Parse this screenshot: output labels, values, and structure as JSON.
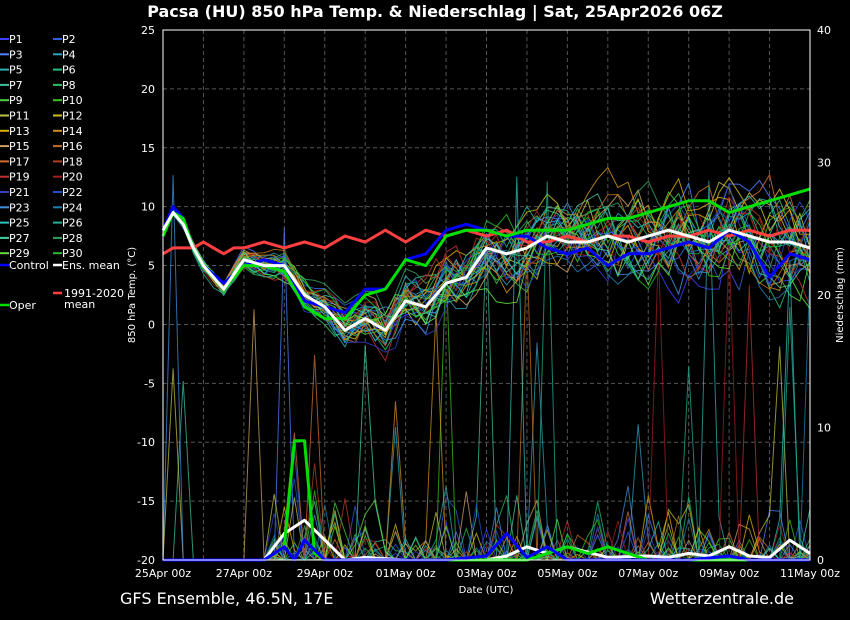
{
  "title": "Pacsa  (HU)  850 hPa Temp. & Niederschlag | Sat, 25Apr2026 06Z",
  "footer_left": "GFS Ensemble, 46.5N, 17E",
  "footer_right": "Wetterzentrale.de",
  "chart_data": {
    "type": "line",
    "xlabel": "Date (UTC)",
    "ylabel": "850 hPa Temp. (°C)",
    "y2label": "Niederschlag (mm)",
    "xlim": [
      0,
      16
    ],
    "ylim": [
      -20,
      25
    ],
    "y2lim": [
      0,
      40
    ],
    "x_tick_labels": [
      "25Apr 00z",
      "27Apr 00z",
      "29Apr 00z",
      "01May 00z",
      "03May 00z",
      "05May 00z",
      "07May 00z",
      "09May 00z",
      "11May 00z"
    ],
    "y_ticks": [
      25,
      20,
      15,
      10,
      5,
      0,
      -5,
      -10,
      -15,
      -20
    ],
    "y2_ticks": [
      40,
      30,
      20,
      10,
      0
    ],
    "grid": true,
    "legend_position": "left",
    "legend": [
      {
        "label": "P1",
        "color": "#4040ff"
      },
      {
        "label": "P2",
        "color": "#3060e0"
      },
      {
        "label": "P3",
        "color": "#5080ff"
      },
      {
        "label": "P4",
        "color": "#30a0c0"
      },
      {
        "label": "P5",
        "color": "#30b0b0"
      },
      {
        "label": "P6",
        "color": "#20c080"
      },
      {
        "label": "P7",
        "color": "#40c0a0"
      },
      {
        "label": "P8",
        "color": "#30c060"
      },
      {
        "label": "P9",
        "color": "#50d040"
      },
      {
        "label": "P10",
        "color": "#40c020"
      },
      {
        "label": "P11",
        "color": "#c0c040"
      },
      {
        "label": "P12",
        "color": "#d0c020"
      },
      {
        "label": "P13",
        "color": "#e0b000"
      },
      {
        "label": "P14",
        "color": "#d09020"
      },
      {
        "label": "P15",
        "color": "#d0a060"
      },
      {
        "label": "P16",
        "color": "#c07020"
      },
      {
        "label": "P17",
        "color": "#d07030"
      },
      {
        "label": "P18",
        "color": "#b04020"
      },
      {
        "label": "P19",
        "color": "#c03030"
      },
      {
        "label": "P20",
        "color": "#a02020"
      },
      {
        "label": "P21",
        "color": "#3040c0"
      },
      {
        "label": "P22",
        "color": "#2050d0"
      },
      {
        "label": "P23",
        "color": "#4090e0"
      },
      {
        "label": "P24",
        "color": "#2080b0"
      },
      {
        "label": "P25",
        "color": "#30c0c0"
      },
      {
        "label": "P26",
        "color": "#20b090"
      },
      {
        "label": "P27",
        "color": "#40d0a0"
      },
      {
        "label": "P28",
        "color": "#30a060"
      },
      {
        "label": "P29",
        "color": "#60e040"
      },
      {
        "label": "P30",
        "color": "#20c030"
      },
      {
        "label": "Control",
        "color": "#0000ff"
      },
      {
        "label": "Ens. mean",
        "color": "#ffffff"
      },
      {
        "label": "Oper",
        "color": "#00e000"
      },
      {
        "label": "1991-2020 mean",
        "color": "#ff4040"
      }
    ],
    "series": [
      {
        "name": "Ens. mean",
        "color": "#ffffff",
        "role": "temp",
        "x": [
          0,
          0.25,
          0.5,
          0.75,
          1,
          1.5,
          2,
          2.5,
          3,
          3.5,
          4,
          4.5,
          5,
          5.5,
          6,
          6.5,
          7,
          7.5,
          8,
          8.5,
          9,
          9.5,
          10,
          10.5,
          11,
          11.5,
          12,
          12.5,
          13,
          13.5,
          14,
          14.5,
          15,
          15.5,
          16
        ],
        "values": [
          8,
          9.5,
          8.5,
          6.5,
          5,
          3,
          5.5,
          5,
          5,
          2.5,
          1.5,
          -0.5,
          0.5,
          -0.5,
          2,
          1.5,
          3.5,
          4,
          6.5,
          6,
          6.5,
          7.5,
          7,
          7,
          7.5,
          7,
          7.5,
          8,
          7.5,
          7,
          8,
          7.5,
          7,
          7,
          6.5
        ]
      },
      {
        "name": "Control",
        "color": "#0000ff",
        "role": "temp",
        "x": [
          0,
          0.25,
          0.5,
          0.75,
          1,
          1.5,
          2,
          2.5,
          3,
          3.5,
          4,
          4.5,
          5,
          5.5,
          6,
          6.5,
          7,
          7.5,
          8,
          8.5,
          9,
          9.5,
          10,
          10.5,
          11,
          11.5,
          12,
          12.5,
          13,
          13.5,
          14,
          14.5,
          15,
          15.5,
          16
        ],
        "values": [
          8,
          10,
          9,
          6.5,
          5,
          3.5,
          5,
          5.5,
          5,
          2,
          1.5,
          1,
          3,
          3,
          5.5,
          6,
          8,
          8.5,
          8,
          7.5,
          7.5,
          6.5,
          6,
          6.5,
          5,
          6,
          6,
          6.5,
          7,
          6.5,
          8,
          7,
          4,
          6,
          5.5
        ]
      },
      {
        "name": "Oper",
        "color": "#00e000",
        "role": "temp",
        "x": [
          0,
          0.25,
          0.5,
          0.75,
          1,
          1.5,
          2,
          2.5,
          3,
          3.5,
          4,
          4.5,
          5,
          5.5,
          6,
          6.5,
          7,
          7.5,
          8,
          8.5,
          9,
          9.5,
          10,
          10.5,
          11,
          11.5,
          12,
          12.5,
          13,
          13.5,
          14,
          14.5,
          15,
          15.5,
          16
        ],
        "values": [
          7.5,
          9.5,
          9,
          6.5,
          5,
          3,
          5,
          5,
          4.5,
          1.5,
          0.5,
          0.5,
          2.5,
          3,
          5.5,
          5,
          7.5,
          8,
          8,
          7.5,
          8,
          8,
          8,
          8.5,
          9,
          9,
          9.5,
          10,
          10.5,
          10.5,
          9.5,
          10,
          10.5,
          11,
          11.5
        ]
      },
      {
        "name": "1991-2020 mean",
        "color": "#ff4040",
        "role": "temp",
        "x": [
          0,
          0.25,
          0.5,
          0.75,
          1,
          1.25,
          1.5,
          1.75,
          2,
          2.5,
          3,
          3.5,
          4,
          4.5,
          5,
          5.5,
          6,
          6.5,
          7,
          7.5,
          8,
          8.5,
          9,
          9.5,
          10,
          10.5,
          11,
          11.5,
          12,
          12.5,
          13,
          13.5,
          14,
          14.5,
          15,
          15.5,
          16
        ],
        "values": [
          6,
          6.5,
          6.5,
          6.5,
          7,
          6.5,
          6,
          6.5,
          6.5,
          7,
          6.5,
          7,
          6.5,
          7.5,
          7,
          8,
          7,
          8,
          7.5,
          8,
          7.5,
          8,
          7,
          7,
          7.5,
          7,
          7.5,
          7.5,
          7,
          7.5,
          7.5,
          8,
          7.5,
          8,
          7.5,
          8,
          8
        ]
      },
      {
        "name": "Ens. mean precip",
        "color": "#ffffff",
        "role": "precip",
        "x": [
          0,
          2,
          2.5,
          3,
          3.5,
          4,
          4.5,
          5,
          6,
          7,
          8,
          8.5,
          9,
          9.5,
          10,
          11,
          12,
          12.5,
          13,
          13.5,
          14,
          14.5,
          15,
          15.5,
          16
        ],
        "values": [
          0,
          0,
          0,
          2,
          3,
          1.5,
          0,
          0.2,
          0,
          0,
          0,
          0.3,
          1,
          0.5,
          1,
          0.2,
          0.3,
          0.2,
          0.5,
          0.3,
          1,
          0.3,
          0.2,
          1.5,
          0.5
        ]
      },
      {
        "name": "Oper precip",
        "color": "#00e000",
        "role": "precip",
        "x": [
          0,
          2,
          2.5,
          3,
          3.25,
          3.5,
          3.75,
          4,
          5,
          6,
          7,
          8,
          9,
          9.5,
          10,
          10.5,
          11,
          11.5,
          12,
          13,
          14,
          15,
          16
        ],
        "values": [
          0,
          0,
          0,
          1,
          9,
          9,
          0.5,
          0,
          0,
          0,
          0,
          0,
          0,
          0.5,
          1,
          0.5,
          1,
          0.5,
          0,
          0,
          0,
          0,
          0
        ]
      },
      {
        "name": "Control precip",
        "color": "#0000ff",
        "role": "precip",
        "x": [
          0,
          2,
          2.5,
          3,
          3.25,
          3.5,
          4,
          5,
          6,
          7,
          8,
          8.5,
          9,
          9.5,
          10,
          11,
          12,
          13,
          14,
          14.5,
          15,
          16
        ],
        "values": [
          0,
          0,
          0,
          1,
          0,
          1.5,
          0,
          0,
          0,
          0,
          0.3,
          2,
          0.2,
          1,
          0,
          0,
          0,
          0,
          0.3,
          0,
          0,
          0
        ]
      }
    ]
  }
}
